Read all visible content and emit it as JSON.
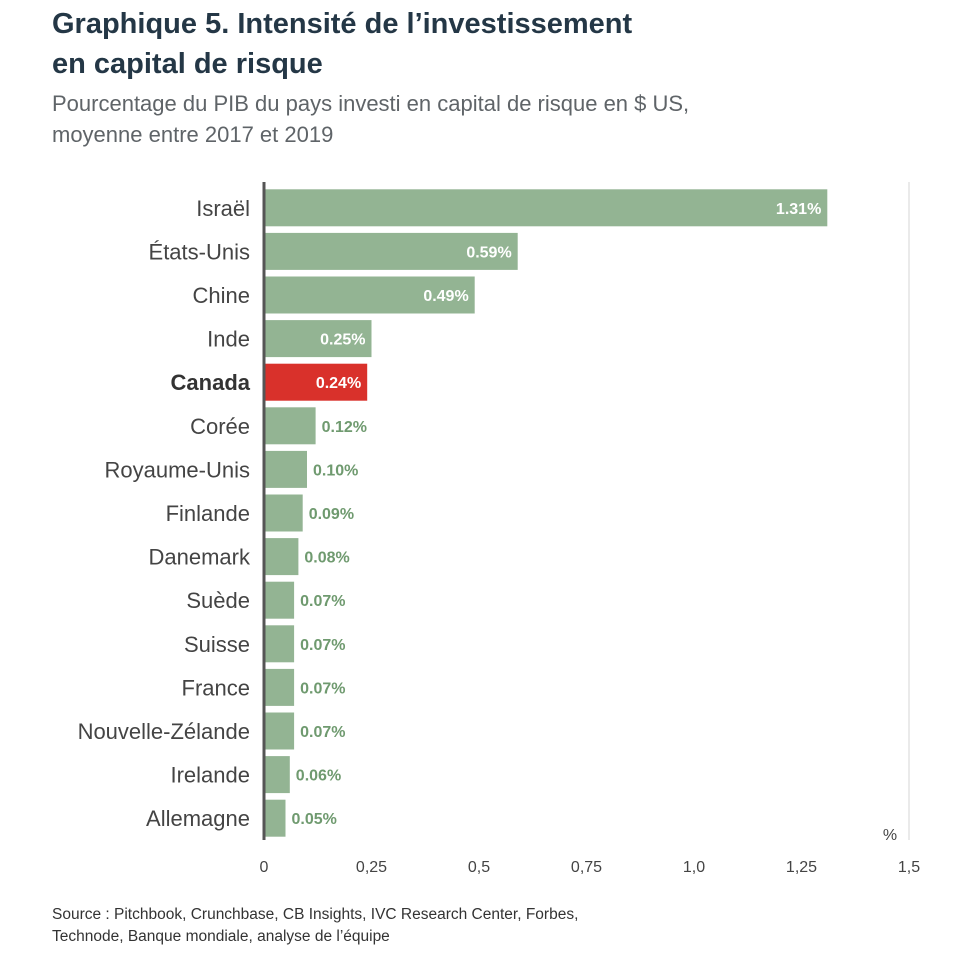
{
  "header": {
    "title_line1": "Graphique 5. Intensité de l’investissement",
    "title_line2": "en capital de risque",
    "subtitle_line1": "Pourcentage du PIB du pays investi en capital de risque en $ US,",
    "subtitle_line2": "moyenne entre 2017 et 2019"
  },
  "footer": {
    "source_line1": "Source : Pitchbook, Crunchbase, CB Insights, IVC Research Center, Forbes,",
    "source_line2": "Technode, Banque mondiale, analyse de l’équipe"
  },
  "colors": {
    "bar": "#93b493",
    "highlight": "#d9312b",
    "label_inside": "#ffffff",
    "label_outside": "#6f9a6f",
    "axis": "#555555",
    "grid": "#e4e4e4",
    "text": "#444444"
  },
  "chart_data": {
    "type": "bar",
    "orientation": "horizontal",
    "categories": [
      "Israël",
      "États-Unis",
      "Chine",
      "Inde",
      "Canada",
      "Corée",
      "Royaume-Unis",
      "Finlande",
      "Danemark",
      "Suède",
      "Suisse",
      "France",
      "Nouvelle-Zélande",
      "Irelande",
      "Allemagne"
    ],
    "values": [
      1.31,
      0.59,
      0.49,
      0.25,
      0.24,
      0.12,
      0.1,
      0.09,
      0.08,
      0.07,
      0.07,
      0.07,
      0.07,
      0.06,
      0.05
    ],
    "value_labels": [
      "1.31%",
      "0.59%",
      "0.49%",
      "0.25%",
      "0.24%",
      "0.12%",
      "0.10%",
      "0.09%",
      "0.08%",
      "0.07%",
      "0.07%",
      "0.07%",
      "0.07%",
      "0.06%",
      "0.05%"
    ],
    "highlight": "Canada",
    "xlim": [
      0,
      1.5
    ],
    "xticks": [
      0,
      0.25,
      0.5,
      0.75,
      1.0,
      1.25,
      1.5
    ],
    "xtick_labels": [
      "0",
      "0,25",
      "0,5",
      "0,75",
      "1,0",
      "1,25",
      "1,5"
    ],
    "xlabel": "%",
    "grid": "vertical line at axis end"
  }
}
